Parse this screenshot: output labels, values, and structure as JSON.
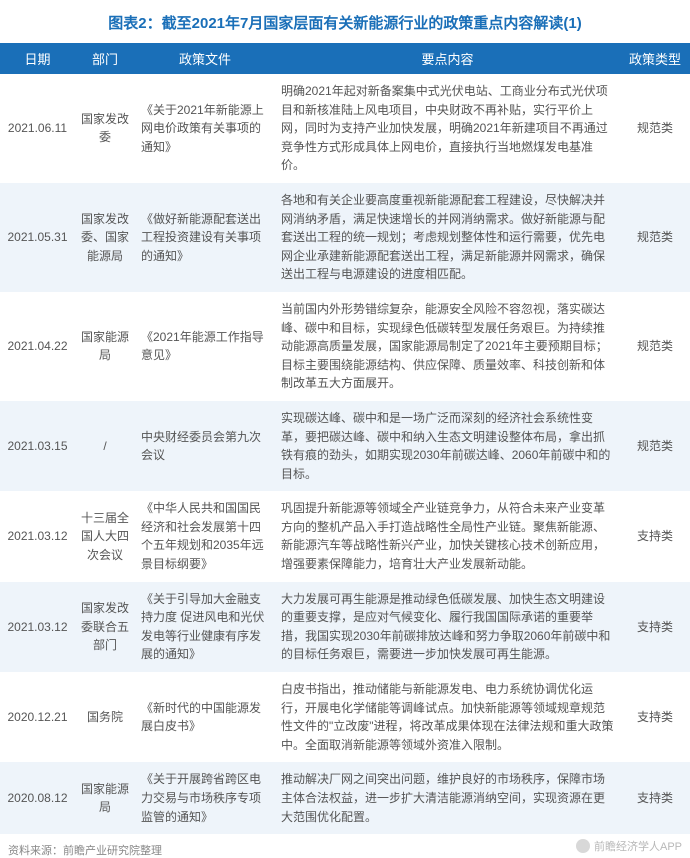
{
  "title": "图表2：截至2021年7月国家层面有关新能源行业的政策重点内容解读(1)",
  "columns": [
    "日期",
    "部门",
    "政策文件",
    "要点内容",
    "政策类型"
  ],
  "rows": [
    {
      "date": "2021.06.11",
      "dept": "国家发改委",
      "doc": "《关于2021年新能源上网电价政策有关事项的通知》",
      "content": "明确2021年起对新备案集中式光伏电站、工商业分布式光伏项目和新核准陆上风电项目，中央财政不再补贴，实行平价上网，同时为支持产业加快发展，明确2021年新建项目不再通过竞争性方式形成具体上网电价，直接执行当地燃煤发电基准价。",
      "type": "规范类"
    },
    {
      "date": "2021.05.31",
      "dept": "国家发改委、国家能源局",
      "doc": "《做好新能源配套送出工程投资建设有关事项的通知》",
      "content": "各地和有关企业要高度重视新能源配套工程建设，尽快解决并网消纳矛盾，满足快速增长的并网消纳需求。做好新能源与配套送出工程的统一规划；考虑规划整体性和运行需要，优先电网企业承建新能源配套送出工程，满足新能源并网需求，确保送出工程与电源建设的进度相匹配。",
      "type": "规范类"
    },
    {
      "date": "2021.04.22",
      "dept": "国家能源局",
      "doc": "《2021年能源工作指导意见》",
      "content": "当前国内外形势错综复杂，能源安全风险不容忽视，落实碳达峰、碳中和目标，实现绿色低碳转型发展任务艰巨。为持续推动能源高质量发展，国家能源局制定了2021年主要预期目标；目标主要围绕能源结构、供应保障、质量效率、科技创新和体制改革五大方面展开。",
      "type": "规范类"
    },
    {
      "date": "2021.03.15",
      "dept": "/",
      "doc": "中央财经委员会第九次会议",
      "content": "实现碳达峰、碳中和是一场广泛而深刻的经济社会系统性变革，要把碳达峰、碳中和纳入生态文明建设整体布局，拿出抓铁有痕的劲头，如期实现2030年前碳达峰、2060年前碳中和的目标。",
      "type": "规范类"
    },
    {
      "date": "2021.03.12",
      "dept": "十三届全国人大四次会议",
      "doc": "《中华人民共和国国民经济和社会发展第十四个五年规划和2035年远景目标纲要》",
      "content": "巩固提升新能源等领域全产业链竞争力，从符合未来产业变革方向的整机产品入手打造战略性全局性产业链。聚焦新能源、新能源汽车等战略性新兴产业，加快关键核心技术创新应用，增强要素保障能力，培育壮大产业发展新动能。",
      "type": "支持类"
    },
    {
      "date": "2021.03.12",
      "dept": "国家发改委联合五部门",
      "doc": "《关于引导加大金融支持力度 促进风电和光伏发电等行业健康有序发展的通知》",
      "content": "大力发展可再生能源是推动绿色低碳发展、加快生态文明建设的重要支撑，是应对气候变化、履行我国国际承诺的重要举措，我国实现2030年前碳排放达峰和努力争取2060年前碳中和的目标任务艰巨，需要进一步加快发展可再生能源。",
      "type": "支持类"
    },
    {
      "date": "2020.12.21",
      "dept": "国务院",
      "doc": "《新时代的中国能源发展白皮书》",
      "content": "白皮书指出，推动储能与新能源发电、电力系统协调优化运行，开展电化学储能等调峰试点。加快新能源等领域规章规范性文件的\"立改废\"进程，将改革成果体现在法律法规和重大政策中。全面取消新能源等领域外资准入限制。",
      "type": "支持类"
    },
    {
      "date": "2020.08.12",
      "dept": "国家能源局",
      "doc": "《关于开展跨省跨区电力交易与市场秩序专项监管的通知》",
      "content": "推动解决厂网之间突出问题，维护良好的市场秩序，保障市场主体合法权益，进一步扩大清洁能源消纳空间，实现资源在更大范围优化配置。",
      "type": "支持类"
    }
  ],
  "footer_source": "资料来源：前瞻产业研究院整理",
  "watermark": "前瞻经济学人APP",
  "colors": {
    "header_bg": "#1a6fb8",
    "header_text": "#ffffff",
    "row_even_bg": "#ffffff",
    "row_odd_bg": "#eef4fa",
    "text_color": "#555555",
    "title_color": "#1a6fb8"
  }
}
